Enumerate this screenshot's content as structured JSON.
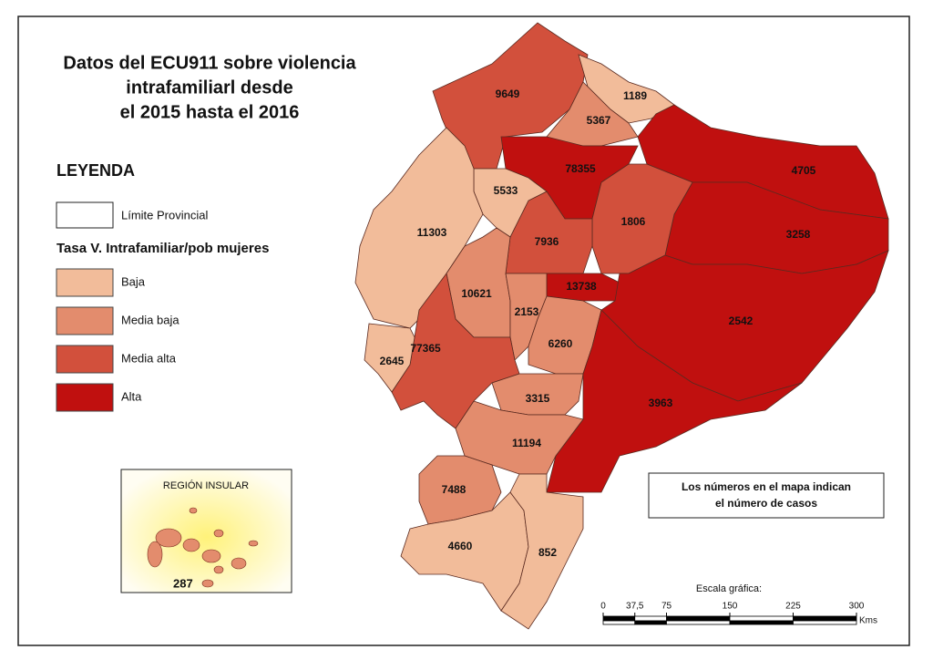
{
  "title": [
    "Datos del ECU911 sobre violencia",
    "intrafamiliarl desde",
    "el 2015 hasta el 2016"
  ],
  "legend": {
    "heading": "LEYENDA",
    "boundary": "Límite Provincial",
    "subtitle": "Tasa V. Intrafamiliar/pob mujeres",
    "classes": [
      {
        "label": "Baja",
        "color": "#f2bc9a"
      },
      {
        "label": "Media baja",
        "color": "#e38c6d"
      },
      {
        "label": "Media alta",
        "color": "#d2503c"
      },
      {
        "label": "Alta",
        "color": "#c0100f"
      }
    ]
  },
  "provinces": [
    {
      "value": 9649,
      "class": 2
    },
    {
      "value": 1189,
      "class": 0
    },
    {
      "value": 5367,
      "class": 1
    },
    {
      "value": 78355,
      "class": 3
    },
    {
      "value": 4705,
      "class": 3
    },
    {
      "value": 3258,
      "class": 3
    },
    {
      "value": 1806,
      "class": 2
    },
    {
      "value": 7936,
      "class": 2
    },
    {
      "value": 5533,
      "class": 0
    },
    {
      "value": 11303,
      "class": 0
    },
    {
      "value": 13738,
      "class": 3
    },
    {
      "value": 2542,
      "class": 3
    },
    {
      "value": 10621,
      "class": 1
    },
    {
      "value": 2153,
      "class": 1
    },
    {
      "value": 6260,
      "class": 1
    },
    {
      "value": 77365,
      "class": 2
    },
    {
      "value": 2645,
      "class": 0
    },
    {
      "value": 3315,
      "class": 1
    },
    {
      "value": 3963,
      "class": 3
    },
    {
      "value": 11194,
      "class": 1
    },
    {
      "value": 7488,
      "class": 1
    },
    {
      "value": 4660,
      "class": 0
    },
    {
      "value": 852,
      "class": 0
    }
  ],
  "inset": {
    "title": "REGIÓN INSULAR",
    "value": 287,
    "class": 1
  },
  "note": [
    "Los números en el mapa indican",
    "el número de casos"
  ],
  "scale": {
    "title": "Escala gráfica:",
    "ticks": [
      0,
      {
        "value": 37.5,
        "label": "37,5"
      },
      75,
      150,
      225,
      300
    ],
    "unit": "Kms"
  }
}
